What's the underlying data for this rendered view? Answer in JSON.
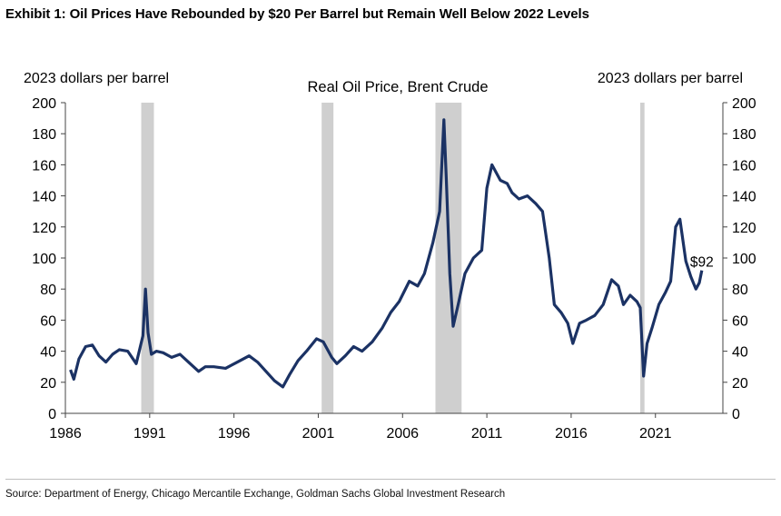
{
  "header": {
    "title": "Exhibit 1: Oil Prices Have Rebounded by $20 Per Barrel but Remain Well Below 2022 Levels"
  },
  "footer": {
    "source": "Source: Department of Energy, Chicago Mercantile Exchange, Goldman Sachs Global Investment Research"
  },
  "colors": {
    "line": "#1b3264",
    "recession": "#cfcfcf",
    "axis": "#444444"
  },
  "chart_data": {
    "type": "line",
    "title": "Real Oil Price, Brent Crude",
    "ylabel_left": "2023 dollars per barrel",
    "ylabel_right": "2023 dollars per barrel",
    "xlim": [
      1986,
      2025
    ],
    "ylim": [
      0,
      200
    ],
    "x_ticks": [
      1986,
      1991,
      1996,
      2001,
      2006,
      2011,
      2016,
      2021
    ],
    "y_ticks": [
      0,
      20,
      40,
      60,
      80,
      100,
      120,
      140,
      160,
      180,
      200
    ],
    "grid": false,
    "annotation": {
      "text": "$92",
      "x": 2023.7,
      "y": 92
    },
    "recessions": [
      {
        "start": 1990.5,
        "end": 1991.25
      },
      {
        "start": 2001.2,
        "end": 2001.9
      },
      {
        "start": 2007.95,
        "end": 2009.5
      },
      {
        "start": 2020.1,
        "end": 2020.35
      }
    ],
    "series": [
      {
        "name": "Brent Crude",
        "x": [
          1986.3,
          1986.5,
          1986.8,
          1987.2,
          1987.6,
          1988.0,
          1988.4,
          1988.8,
          1989.2,
          1989.7,
          1990.2,
          1990.6,
          1990.75,
          1990.9,
          1991.1,
          1991.4,
          1991.8,
          1992.3,
          1992.8,
          1993.3,
          1993.9,
          1994.3,
          1994.8,
          1995.5,
          1996.2,
          1996.9,
          1997.4,
          1997.9,
          1998.4,
          1998.9,
          1999.3,
          1999.8,
          2000.3,
          2000.9,
          2001.3,
          2001.8,
          2002.1,
          2002.6,
          2003.1,
          2003.6,
          2004.2,
          2004.8,
          2005.3,
          2005.8,
          2006.4,
          2006.9,
          2007.3,
          2007.8,
          2008.2,
          2008.45,
          2008.6,
          2008.8,
          2009.0,
          2009.3,
          2009.7,
          2010.2,
          2010.7,
          2011.0,
          2011.3,
          2011.8,
          2012.2,
          2012.5,
          2012.9,
          2013.4,
          2013.9,
          2014.3,
          2014.7,
          2015.0,
          2015.4,
          2015.8,
          2016.1,
          2016.5,
          2016.9,
          2017.4,
          2017.9,
          2018.4,
          2018.8,
          2019.1,
          2019.5,
          2019.9,
          2020.1,
          2020.3,
          2020.5,
          2020.8,
          2021.2,
          2021.6,
          2021.9,
          2022.2,
          2022.45,
          2022.8,
          2023.1,
          2023.4,
          2023.6,
          2023.75
        ],
        "values": [
          28,
          22,
          35,
          43,
          44,
          37,
          33,
          38,
          41,
          40,
          32,
          50,
          80,
          52,
          38,
          40,
          39,
          36,
          38,
          33,
          27,
          30,
          30,
          29,
          33,
          37,
          33,
          27,
          21,
          17,
          25,
          34,
          40,
          48,
          46,
          36,
          32,
          37,
          43,
          40,
          46,
          55,
          65,
          72,
          85,
          82,
          90,
          110,
          130,
          189,
          150,
          90,
          56,
          70,
          90,
          100,
          105,
          145,
          160,
          150,
          148,
          142,
          138,
          140,
          135,
          130,
          100,
          70,
          65,
          58,
          45,
          58,
          60,
          63,
          70,
          86,
          82,
          70,
          76,
          72,
          68,
          24,
          45,
          55,
          70,
          78,
          85,
          120,
          125,
          98,
          88,
          80,
          84,
          92
        ]
      }
    ]
  }
}
